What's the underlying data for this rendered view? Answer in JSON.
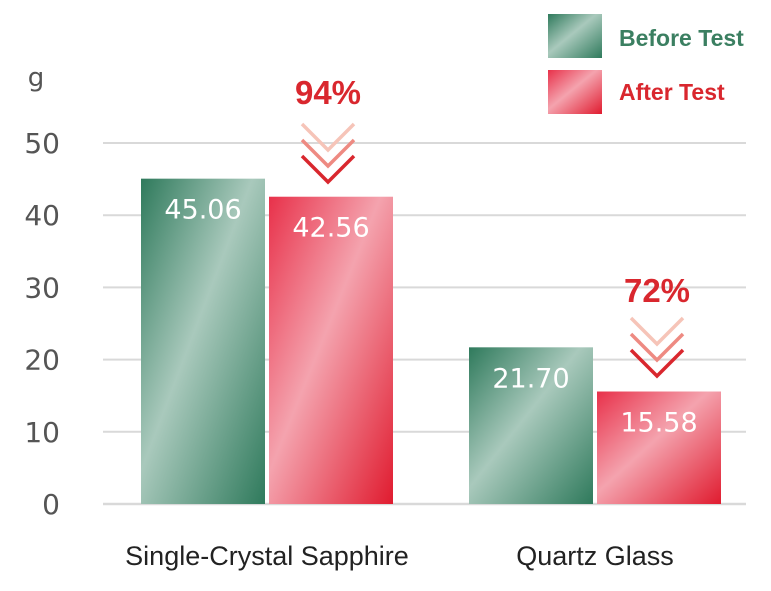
{
  "chart_data": {
    "type": "bar",
    "ylabel": "g",
    "ylim": [
      0,
      50
    ],
    "yticks": [
      "0",
      "10",
      "20",
      "30",
      "40",
      "50"
    ],
    "grid": true,
    "legend_position": "top-right",
    "categories": [
      "Single-Crystal Sapphire",
      "Quartz Glass"
    ],
    "series": [
      {
        "name": "Before Test",
        "values": [
          45.06,
          21.7
        ],
        "labels": [
          "45.06",
          "21.70"
        ],
        "color": "#3d8a6c"
      },
      {
        "name": "After Test",
        "values": [
          42.56,
          15.58
        ],
        "labels": [
          "42.56",
          "15.58"
        ],
        "color": "#e01b2f"
      }
    ],
    "annotations": [
      "94%",
      "72%"
    ],
    "colors": {
      "before_text": "#3b7f61",
      "after_text": "#d9272e",
      "grid": "#d9d9d9",
      "annotation": "#d9272e"
    }
  }
}
